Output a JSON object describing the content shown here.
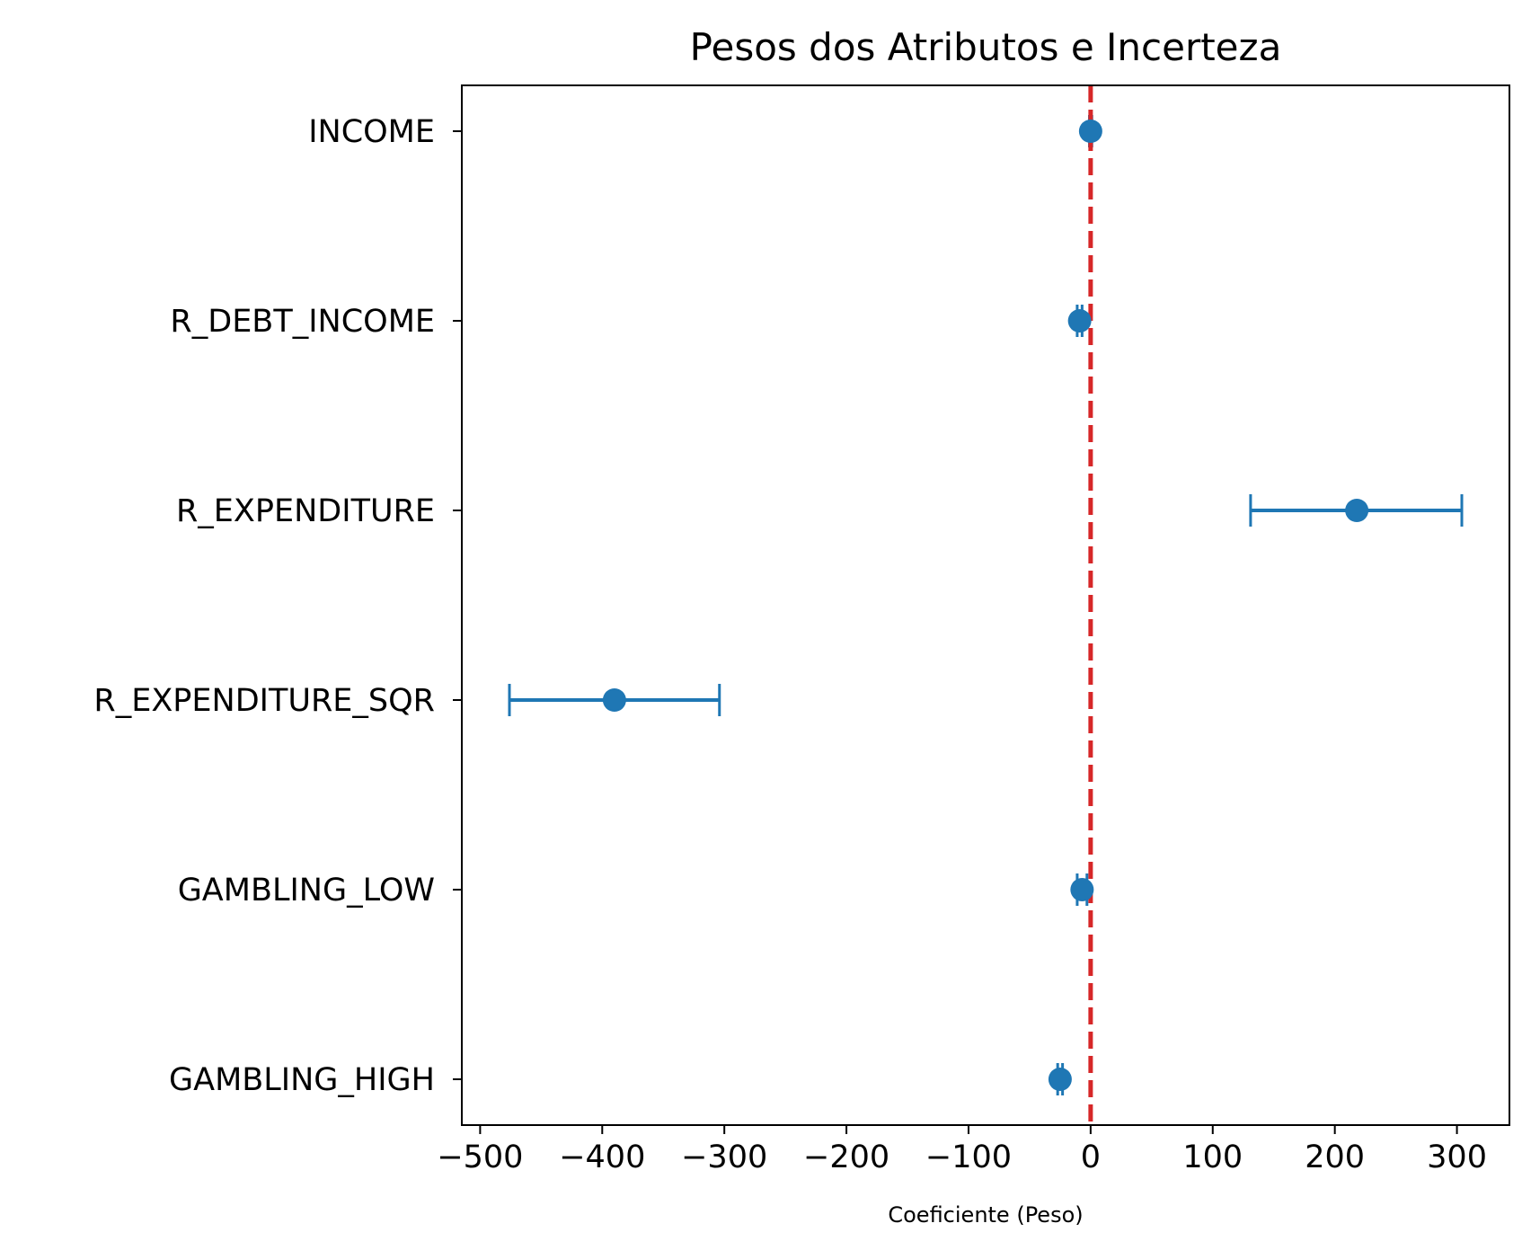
{
  "chart_data": {
    "type": "scatter",
    "title": "Pesos dos Atributos e Incerteza",
    "xlabel": "Coeficiente (Peso)",
    "ylabel": "",
    "xlim": [
      -515,
      343
    ],
    "xticks": [
      -500,
      -400,
      -300,
      -200,
      -100,
      0,
      100,
      200,
      300
    ],
    "xtick_labels": [
      "−500",
      "−400",
      "−300",
      "−200",
      "−100",
      "0",
      "100",
      "200",
      "300"
    ],
    "categories": [
      "INCOME",
      "R_DEBT_INCOME",
      "R_EXPENDITURE",
      "R_EXPENDITURE_SQR",
      "GAMBLING_LOW",
      "GAMBLING_HIGH"
    ],
    "series": [
      {
        "values": [
          0,
          -9,
          218,
          -390,
          -7,
          -25
        ],
        "error_low": [
          -1,
          -11,
          131,
          -476,
          -11,
          -27
        ],
        "error_high": [
          1,
          -7,
          304,
          -304,
          -3,
          -23
        ]
      }
    ],
    "reference_line": {
      "x": 0,
      "style": "dashed"
    },
    "grid": false,
    "colors": {
      "points": "#1f77b4",
      "reference": "#d62728",
      "axes": "#000000"
    }
  }
}
